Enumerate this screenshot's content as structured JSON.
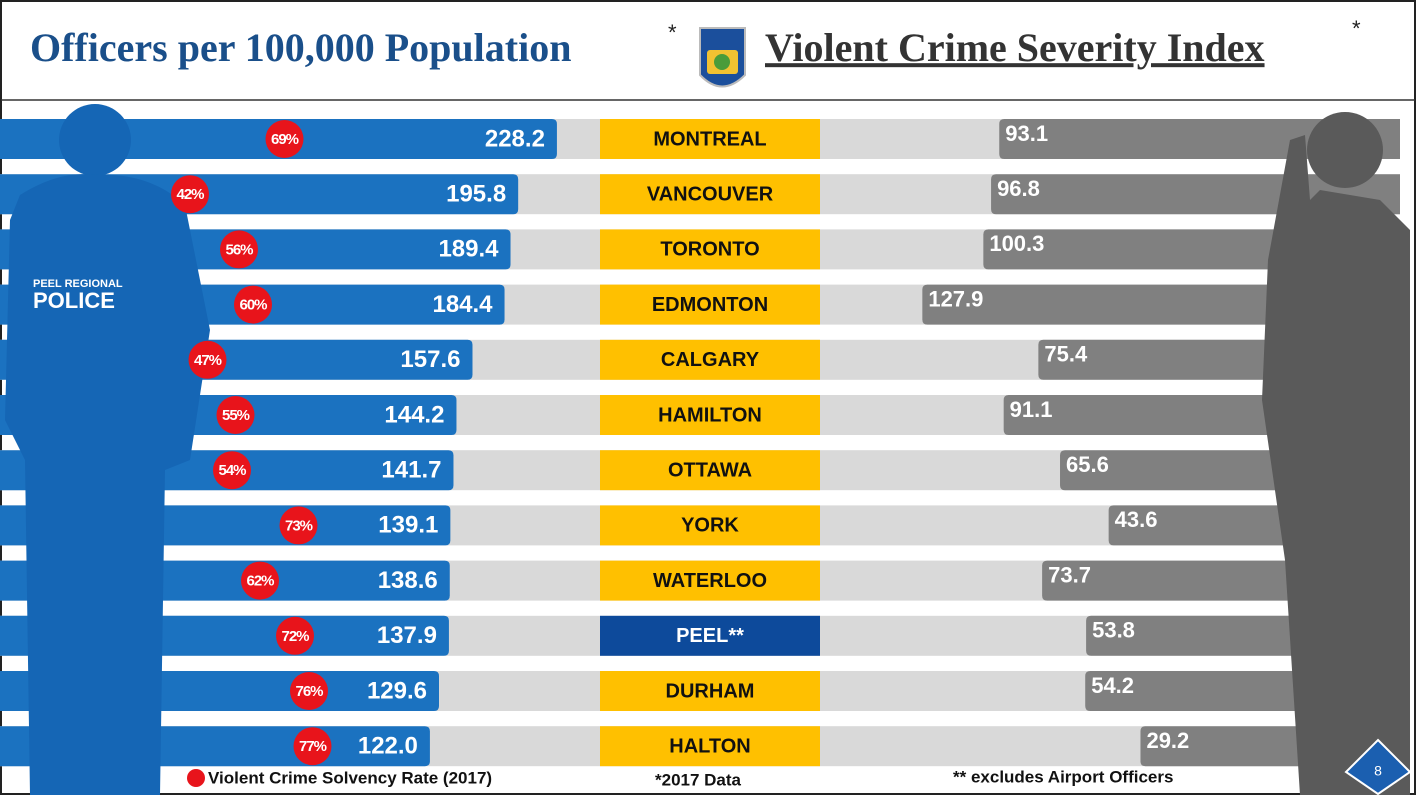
{
  "chart_data": {
    "type": "butterfly",
    "title": "Officers per 100,000 Population",
    "title_note": "*",
    "right_title": "Violent Crime Severity Index",
    "right_title_note": "*",
    "categories": [
      "MONTREAL",
      "VANCOUVER",
      "TORONTO",
      "EDMONTON",
      "CALGARY",
      "HAMILTON",
      "OTTAWA",
      "YORK",
      "WATERLOO",
      "PEEL**",
      "DURHAM",
      "HALTON"
    ],
    "category_colors": [
      "#ffc000",
      "#ffc000",
      "#ffc000",
      "#ffc000",
      "#ffc000",
      "#ffc000",
      "#ffc000",
      "#ffc000",
      "#ffc000",
      "#0d4a9b",
      "#ffc000",
      "#ffc000"
    ],
    "series": [
      {
        "color": "#1b72c0",
        "values": [
          228.2,
          195.8,
          189.4,
          184.4,
          157.6,
          144.2,
          141.7,
          139.1,
          138.6,
          137.9,
          129.6,
          122.0
        ],
        "value_labels": [
          "228.2",
          "195.8",
          "189.4",
          "184.4",
          "157.6",
          "144.2",
          "141.7",
          "139.1",
          "138.6",
          "137.9",
          "129.6",
          "122.0"
        ]
      },
      {
        "color": "#808080",
        "values": [
          93.1,
          96.8,
          100.3,
          127.9,
          75.4,
          91.1,
          65.6,
          43.6,
          73.7,
          53.8,
          54.2,
          29.2
        ]
      },
      {
        "name": "Violent Crime Solvency Rate (2017)",
        "color": "#e8141b",
        "values": [
          69,
          42,
          56,
          60,
          47,
          55,
          54,
          73,
          62,
          72,
          76,
          77
        ],
        "value_labels": [
          "69%",
          "42%",
          "56%",
          "60%",
          "47%",
          "55%",
          "54%",
          "73%",
          "62%",
          "72%",
          "76%",
          "77%"
        ]
      }
    ],
    "silhouette_text": [
      "PEEL REGIONAL",
      "POLICE"
    ],
    "notes": [
      "*2017 Data",
      "** excludes Airport Officers"
    ],
    "page_number": 8
  }
}
